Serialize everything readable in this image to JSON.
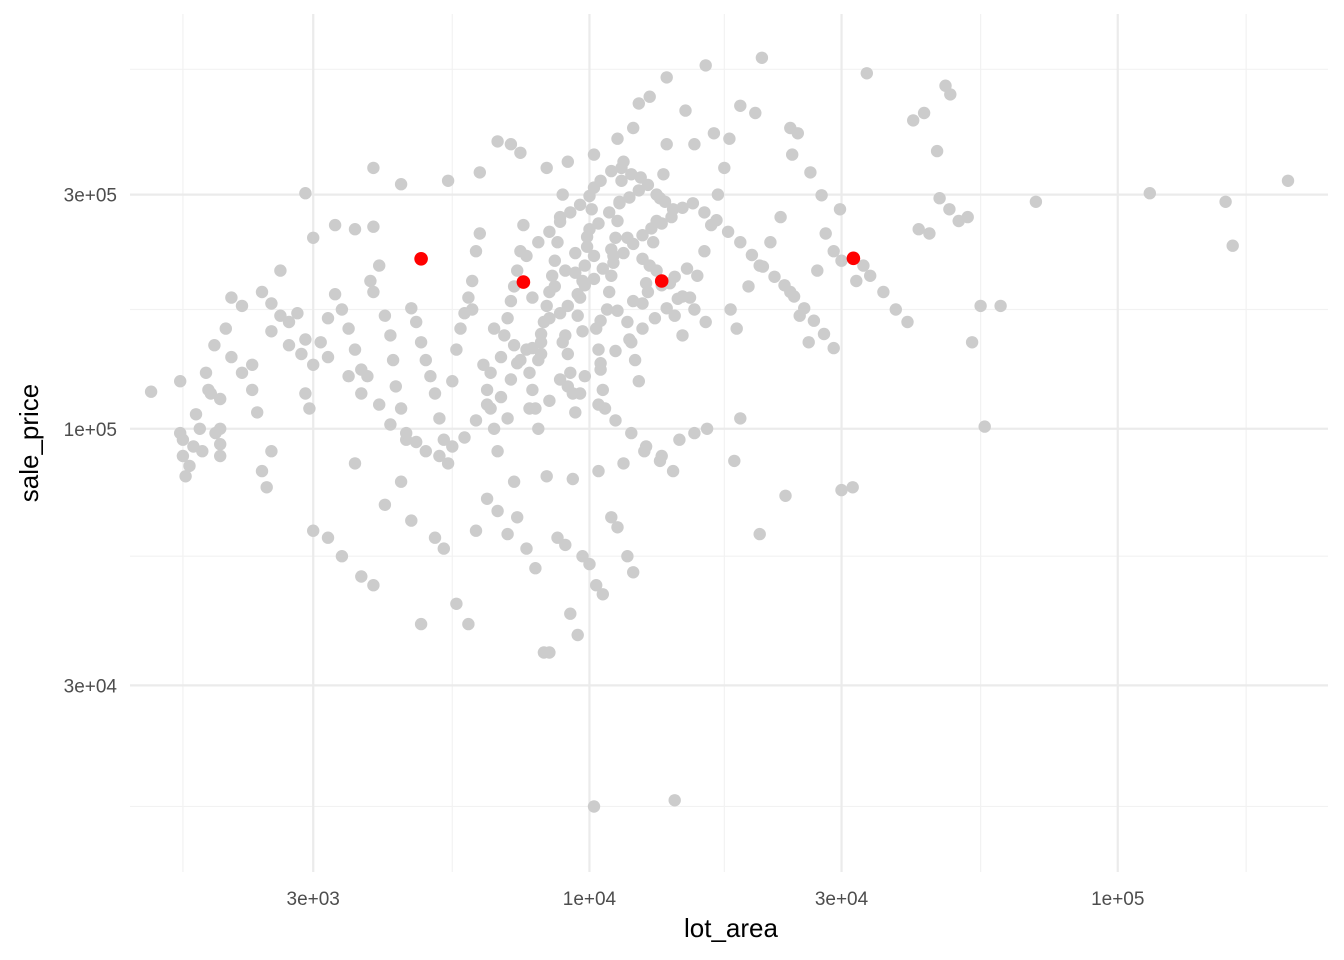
{
  "chart_data": {
    "type": "scatter",
    "xlabel": "lot_area",
    "ylabel": "sale_price",
    "x_scale": "log10",
    "y_scale": "log10",
    "xlim": [
      1350,
      250000
    ],
    "ylim": [
      12500,
      700000
    ],
    "x_ticks": [
      {
        "value": 3000,
        "label": "3e+03"
      },
      {
        "value": 10000,
        "label": "1e+04"
      },
      {
        "value": 30000,
        "label": "3e+04"
      },
      {
        "value": 100000,
        "label": "1e+05"
      }
    ],
    "y_ticks": [
      {
        "value": 30000,
        "label": "3e+04"
      },
      {
        "value": 100000,
        "label": "1e+05"
      },
      {
        "value": 300000,
        "label": "3e+05"
      }
    ],
    "x_minor_gridlines": [
      1700,
      5500,
      18000,
      55000,
      175000
    ],
    "y_minor_gridlines": [
      17000,
      55000,
      175000,
      540000
    ],
    "grid": true,
    "point_color": "#cccccc",
    "highlight_color": "#ff0000",
    "highlighted_points": [
      {
        "x": 4800,
        "y": 222000
      },
      {
        "x": 7500,
        "y": 199000
      },
      {
        "x": 13700,
        "y": 200000
      },
      {
        "x": 31600,
        "y": 222500
      }
    ],
    "points": [
      [
        1480,
        119000
      ],
      [
        1680,
        125000
      ],
      [
        1680,
        98000
      ],
      [
        1700,
        95000
      ],
      [
        1700,
        88000
      ],
      [
        1720,
        80000
      ],
      [
        1750,
        84000
      ],
      [
        1780,
        92000
      ],
      [
        1800,
        107000
      ],
      [
        1830,
        100000
      ],
      [
        1850,
        90000
      ],
      [
        1900,
        120000
      ],
      [
        1920,
        118000
      ],
      [
        1960,
        98000
      ],
      [
        2000,
        115000
      ],
      [
        2000,
        100000
      ],
      [
        2000,
        93000
      ],
      [
        2000,
        88000
      ],
      [
        2050,
        160000
      ],
      [
        2200,
        130000
      ],
      [
        2300,
        120000
      ],
      [
        2350,
        108000
      ],
      [
        2400,
        82000
      ],
      [
        2450,
        76000
      ],
      [
        2500,
        90000
      ],
      [
        2500,
        180000
      ],
      [
        2600,
        170000
      ],
      [
        2700,
        165000
      ],
      [
        2800,
        172000
      ],
      [
        2850,
        142000
      ],
      [
        2900,
        118000
      ],
      [
        2950,
        110000
      ],
      [
        3000,
        135000
      ],
      [
        3100,
        150000
      ],
      [
        3200,
        168000
      ],
      [
        3300,
        188000
      ],
      [
        3400,
        175000
      ],
      [
        3500,
        160000
      ],
      [
        3600,
        145000
      ],
      [
        3700,
        132000
      ],
      [
        3800,
        128000
      ],
      [
        3850,
        200000
      ],
      [
        3900,
        190000
      ],
      [
        4000,
        215000
      ],
      [
        4100,
        170000
      ],
      [
        4200,
        155000
      ],
      [
        4250,
        138000
      ],
      [
        4300,
        122000
      ],
      [
        4400,
        110000
      ],
      [
        4500,
        95000
      ],
      [
        4600,
        176000
      ],
      [
        4700,
        165000
      ],
      [
        4800,
        150000
      ],
      [
        4900,
        138000
      ],
      [
        5000,
        128000
      ],
      [
        5100,
        118000
      ],
      [
        5200,
        105000
      ],
      [
        5300,
        95000
      ],
      [
        5400,
        85000
      ],
      [
        5500,
        125000
      ],
      [
        5600,
        145000
      ],
      [
        5700,
        160000
      ],
      [
        5800,
        172000
      ],
      [
        5900,
        185000
      ],
      [
        6000,
        200000
      ],
      [
        6100,
        230000
      ],
      [
        6200,
        250000
      ],
      [
        6300,
        135000
      ],
      [
        6400,
        120000
      ],
      [
        6500,
        110000
      ],
      [
        6600,
        100000
      ],
      [
        6700,
        90000
      ],
      [
        6800,
        140000
      ],
      [
        6900,
        155000
      ],
      [
        7000,
        168000
      ],
      [
        7100,
        182000
      ],
      [
        7200,
        195000
      ],
      [
        7300,
        210000
      ],
      [
        7400,
        230000
      ],
      [
        7500,
        260000
      ],
      [
        7600,
        145000
      ],
      [
        7700,
        130000
      ],
      [
        7800,
        120000
      ],
      [
        7900,
        110000
      ],
      [
        8000,
        100000
      ],
      [
        8100,
        150000
      ],
      [
        8200,
        165000
      ],
      [
        8300,
        178000
      ],
      [
        8400,
        190000
      ],
      [
        8500,
        205000
      ],
      [
        8600,
        220000
      ],
      [
        8700,
        240000
      ],
      [
        8800,
        270000
      ],
      [
        8900,
        300000
      ],
      [
        9000,
        155000
      ],
      [
        9100,
        142000
      ],
      [
        9200,
        130000
      ],
      [
        9300,
        118000
      ],
      [
        9400,
        108000
      ],
      [
        9500,
        170000
      ],
      [
        9600,
        185000
      ],
      [
        9700,
        200000
      ],
      [
        9800,
        215000
      ],
      [
        9900,
        235000
      ],
      [
        10000,
        255000
      ],
      [
        10100,
        280000
      ],
      [
        10200,
        310000
      ],
      [
        10300,
        160000
      ],
      [
        10400,
        145000
      ],
      [
        10500,
        132000
      ],
      [
        10600,
        120000
      ],
      [
        10700,
        110000
      ],
      [
        10800,
        175000
      ],
      [
        10900,
        190000
      ],
      [
        11000,
        205000
      ],
      [
        11100,
        225000
      ],
      [
        11200,
        245000
      ],
      [
        11300,
        265000
      ],
      [
        11400,
        290000
      ],
      [
        11500,
        320000
      ],
      [
        11600,
        350000
      ],
      [
        11800,
        165000
      ],
      [
        12000,
        150000
      ],
      [
        12200,
        138000
      ],
      [
        12400,
        125000
      ],
      [
        12600,
        180000
      ],
      [
        12800,
        198000
      ],
      [
        13000,
        215000
      ],
      [
        13200,
        240000
      ],
      [
        13400,
        265000
      ],
      [
        13600,
        295000
      ],
      [
        13800,
        330000
      ],
      [
        14000,
        380000
      ],
      [
        14500,
        170000
      ],
      [
        15000,
        155000
      ],
      [
        15500,
        185000
      ],
      [
        16000,
        205000
      ],
      [
        16500,
        230000
      ],
      [
        17000,
        260000
      ],
      [
        17500,
        300000
      ],
      [
        18000,
        340000
      ],
      [
        18500,
        175000
      ],
      [
        19000,
        160000
      ],
      [
        20000,
        195000
      ],
      [
        21000,
        215000
      ],
      [
        22000,
        240000
      ],
      [
        23000,
        270000
      ],
      [
        24000,
        190000
      ],
      [
        25000,
        170000
      ],
      [
        26000,
        150000
      ],
      [
        27000,
        210000
      ],
      [
        28000,
        250000
      ],
      [
        29000,
        230000
      ],
      [
        30000,
        220000
      ],
      [
        32000,
        200000
      ],
      [
        33000,
        215000
      ],
      [
        34000,
        205000
      ],
      [
        36000,
        190000
      ],
      [
        38000,
        175000
      ],
      [
        40000,
        165000
      ],
      [
        42000,
        255000
      ],
      [
        44000,
        250000
      ],
      [
        46000,
        295000
      ],
      [
        48000,
        280000
      ],
      [
        50000,
        265000
      ],
      [
        52000,
        270000
      ],
      [
        53000,
        150000
      ],
      [
        55000,
        178000
      ],
      [
        56000,
        101000
      ],
      [
        60000,
        178000
      ],
      [
        70000,
        290000
      ],
      [
        115000,
        302000
      ],
      [
        160000,
        290000
      ],
      [
        165000,
        236000
      ],
      [
        210000,
        320000
      ],
      [
        3000,
        62000
      ],
      [
        3200,
        60000
      ],
      [
        3400,
        55000
      ],
      [
        3600,
        85000
      ],
      [
        3700,
        50000
      ],
      [
        3900,
        48000
      ],
      [
        4100,
        70000
      ],
      [
        4400,
        78000
      ],
      [
        4600,
        65000
      ],
      [
        4800,
        40000
      ],
      [
        5100,
        60000
      ],
      [
        5300,
        57000
      ],
      [
        5600,
        44000
      ],
      [
        5900,
        40000
      ],
      [
        6100,
        62000
      ],
      [
        6400,
        72000
      ],
      [
        6700,
        68000
      ],
      [
        7000,
        61000
      ],
      [
        7300,
        66000
      ],
      [
        7600,
        57000
      ],
      [
        7900,
        52000
      ],
      [
        8200,
        35000
      ],
      [
        8400,
        35000
      ],
      [
        8700,
        60000
      ],
      [
        9000,
        58000
      ],
      [
        9200,
        42000
      ],
      [
        9500,
        38000
      ],
      [
        9700,
        55000
      ],
      [
        10000,
        53000
      ],
      [
        10300,
        48000
      ],
      [
        10600,
        46000
      ],
      [
        11000,
        66000
      ],
      [
        11300,
        63000
      ],
      [
        11800,
        55000
      ],
      [
        12100,
        51000
      ],
      [
        10200,
        17000
      ],
      [
        14500,
        17500
      ],
      [
        21000,
        61000
      ],
      [
        23500,
        73000
      ],
      [
        30000,
        75000
      ],
      [
        31500,
        76000
      ],
      [
        7200,
        78000
      ],
      [
        8300,
        80000
      ],
      [
        9300,
        79000
      ],
      [
        10400,
        82000
      ],
      [
        11600,
        85000
      ],
      [
        12700,
        90000
      ],
      [
        13700,
        88000
      ],
      [
        14800,
        95000
      ],
      [
        15800,
        98000
      ],
      [
        16700,
        100000
      ],
      [
        18800,
        86000
      ],
      [
        19300,
        105000
      ],
      [
        12400,
        460000
      ],
      [
        13000,
        475000
      ],
      [
        14000,
        520000
      ],
      [
        15200,
        445000
      ],
      [
        16600,
        550000
      ],
      [
        21200,
        570000
      ],
      [
        24000,
        410000
      ],
      [
        33500,
        530000
      ],
      [
        43000,
        440000
      ],
      [
        47200,
        500000
      ],
      [
        48200,
        480000
      ],
      [
        45500,
        368000
      ],
      [
        41000,
        425000
      ],
      [
        15800,
        380000
      ],
      [
        17200,
        400000
      ],
      [
        18400,
        390000
      ],
      [
        19300,
        455000
      ],
      [
        12100,
        410000
      ],
      [
        20600,
        440000
      ],
      [
        24200,
        362000
      ],
      [
        24800,
        400000
      ],
      [
        26200,
        333000
      ],
      [
        27500,
        299000
      ],
      [
        29800,
        280000
      ],
      [
        11300,
        390000
      ],
      [
        10200,
        362000
      ],
      [
        9100,
        350000
      ],
      [
        8300,
        340000
      ],
      [
        6700,
        385000
      ],
      [
        7100,
        380000
      ],
      [
        7400,
        365000
      ],
      [
        6200,
        333000
      ],
      [
        5400,
        320000
      ],
      [
        4400,
        315000
      ],
      [
        3900,
        340000
      ],
      [
        2900,
        302000
      ],
      [
        3300,
        260000
      ],
      [
        3600,
        255000
      ],
      [
        3900,
        258000
      ],
      [
        3000,
        245000
      ],
      [
        2600,
        210000
      ],
      [
        2400,
        190000
      ],
      [
        2200,
        178000
      ],
      [
        2100,
        185000
      ],
      [
        1950,
        148000
      ],
      [
        1880,
        130000
      ],
      [
        2100,
        140000
      ],
      [
        2300,
        135000
      ],
      [
        2500,
        158000
      ],
      [
        2700,
        148000
      ],
      [
        2900,
        152000
      ],
      [
        3200,
        140000
      ],
      [
        3500,
        128000
      ],
      [
        3700,
        118000
      ],
      [
        4000,
        112000
      ],
      [
        4200,
        102000
      ],
      [
        4500,
        98000
      ],
      [
        4700,
        94000
      ],
      [
        4900,
        90000
      ],
      [
        5200,
        88000
      ],
      [
        5500,
        92000
      ],
      [
        5800,
        96000
      ],
      [
        6100,
        104000
      ],
      [
        6400,
        112000
      ],
      [
        6800,
        116000
      ],
      [
        7100,
        126000
      ],
      [
        7400,
        138000
      ],
      [
        7800,
        146000
      ],
      [
        8100,
        156000
      ],
      [
        8400,
        168000
      ],
      [
        8800,
        172000
      ],
      [
        9100,
        178000
      ],
      [
        9500,
        188000
      ],
      [
        9800,
        196000
      ],
      [
        10200,
        202000
      ],
      [
        10600,
        212000
      ],
      [
        11100,
        218000
      ],
      [
        11600,
        228000
      ],
      [
        12100,
        238000
      ],
      [
        12600,
        248000
      ],
      [
        13100,
        256000
      ],
      [
        13700,
        262000
      ],
      [
        14300,
        270000
      ],
      [
        15000,
        282000
      ],
      [
        15700,
        288000
      ],
      [
        16500,
        276000
      ],
      [
        17400,
        266000
      ],
      [
        18300,
        252000
      ],
      [
        19300,
        240000
      ],
      [
        20300,
        226000
      ],
      [
        21300,
        214000
      ],
      [
        22400,
        204000
      ],
      [
        23400,
        196000
      ],
      [
        24400,
        186000
      ],
      [
        25500,
        176000
      ],
      [
        26600,
        166000
      ],
      [
        27800,
        156000
      ],
      [
        29000,
        146000
      ],
      [
        6000,
        175000
      ],
      [
        6600,
        160000
      ],
      [
        7200,
        148000
      ],
      [
        8000,
        138000
      ],
      [
        8800,
        126000
      ],
      [
        9600,
        118000
      ],
      [
        10400,
        112000
      ],
      [
        11200,
        104000
      ],
      [
        12000,
        98000
      ],
      [
        12800,
        92000
      ],
      [
        13600,
        86000
      ],
      [
        14400,
        82000
      ],
      [
        9000,
        210000
      ],
      [
        9400,
        228000
      ],
      [
        9900,
        246000
      ],
      [
        10400,
        262000
      ],
      [
        10900,
        276000
      ],
      [
        11400,
        288000
      ],
      [
        11900,
        296000
      ],
      [
        12400,
        306000
      ],
      [
        12900,
        314000
      ],
      [
        13400,
        300000
      ],
      [
        13900,
        290000
      ],
      [
        14400,
        280000
      ],
      [
        7600,
        225000
      ],
      [
        8000,
        240000
      ],
      [
        8400,
        252000
      ],
      [
        8800,
        264000
      ],
      [
        9200,
        276000
      ],
      [
        9600,
        286000
      ],
      [
        10000,
        298000
      ],
      [
        10500,
        320000
      ],
      [
        11000,
        335000
      ],
      [
        11500,
        340000
      ],
      [
        12000,
        330000
      ],
      [
        12500,
        325000
      ],
      [
        7800,
        185000
      ],
      [
        8600,
        195000
      ],
      [
        9400,
        208000
      ],
      [
        10200,
        225000
      ],
      [
        11000,
        232000
      ],
      [
        11800,
        245000
      ],
      [
        12600,
        222000
      ],
      [
        13400,
        210000
      ],
      [
        14200,
        198000
      ],
      [
        15000,
        186000
      ],
      [
        15800,
        175000
      ],
      [
        16600,
        165000
      ],
      [
        7000,
        105000
      ],
      [
        7700,
        110000
      ],
      [
        8400,
        114000
      ],
      [
        9100,
        122000
      ],
      [
        9800,
        128000
      ],
      [
        10500,
        136000
      ],
      [
        11200,
        144000
      ],
      [
        11900,
        152000
      ],
      [
        12600,
        160000
      ],
      [
        13300,
        168000
      ],
      [
        14000,
        176000
      ],
      [
        14700,
        184000
      ],
      [
        6500,
        130000
      ],
      [
        7300,
        136000
      ],
      [
        8100,
        142000
      ],
      [
        8900,
        150000
      ],
      [
        9700,
        158000
      ],
      [
        10500,
        166000
      ],
      [
        11300,
        174000
      ],
      [
        12100,
        182000
      ],
      [
        12900,
        190000
      ],
      [
        13700,
        196000
      ],
      [
        14500,
        204000
      ],
      [
        15300,
        212000
      ]
    ]
  }
}
